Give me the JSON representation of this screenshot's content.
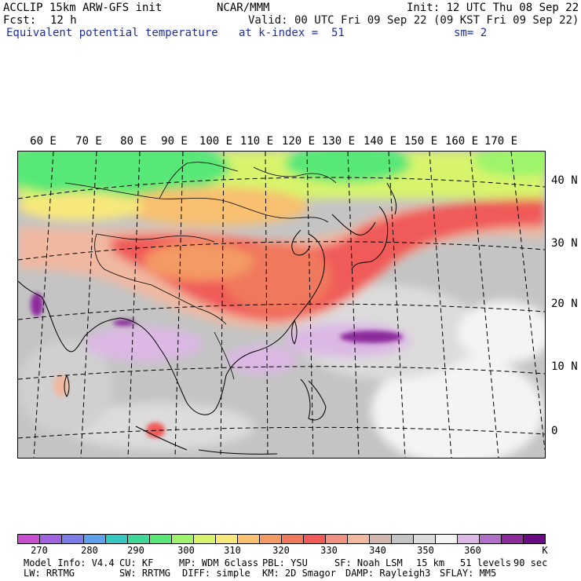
{
  "header": {
    "model": "ACCLIP 15km ARW-GFS init",
    "org": "NCAR/MMM",
    "init": "Init: 12 UTC Thu 08 Sep 22",
    "fcst_label": "Fcst:",
    "fcst_value": "12 h",
    "valid": "Valid: 00 UTC Fri 09 Sep 22 (09 KST Fri 09 Sep 22)",
    "field": "Equivalent potential temperature",
    "level": "at k-index =  51",
    "smoothing": "sm= 2"
  },
  "map": {
    "lon_labels": [
      "60 E",
      "70 E",
      "80 E",
      "90 E",
      "100 E",
      "110 E",
      "120 E",
      "130 E",
      "140 E",
      "150 E",
      "160 E",
      "170 E"
    ],
    "lat_labels": [
      "40 N",
      "30 N",
      "20 N",
      "10 N",
      "0"
    ]
  },
  "colorbar": {
    "unit": "K",
    "ticks": [
      "270",
      "280",
      "290",
      "300",
      "310",
      "320",
      "330",
      "340",
      "350",
      "360"
    ],
    "colors": [
      "#c850d0",
      "#a064e0",
      "#7c7ce8",
      "#5ea0ec",
      "#36c8c0",
      "#40d898",
      "#58e878",
      "#9ef46a",
      "#d8f46c",
      "#f8e87c",
      "#f8c070",
      "#f49a64",
      "#f0785c",
      "#f05a58",
      "#f09080",
      "#f0b8a0",
      "#d0b8b0",
      "#c4c4c4",
      "#dcdcdc",
      "#f4f4f4",
      "#dcb8e4",
      "#b070c8",
      "#8c2c9c",
      "#6a0a84"
    ]
  },
  "footer": {
    "line1": [
      "Model Info: V4.4",
      "CU: KF",
      "MP: WDM 6class",
      "PBL: YSU",
      "SF: Noah LSM",
      "15 km",
      "51 levels",
      "90 sec"
    ],
    "line2": [
      "LW: RRTMG",
      "SW: RRTMG",
      "DIFF: simple",
      "KM: 2D Smagor",
      "DAMP: Rayleigh3",
      "SFLAY: MM5"
    ]
  }
}
